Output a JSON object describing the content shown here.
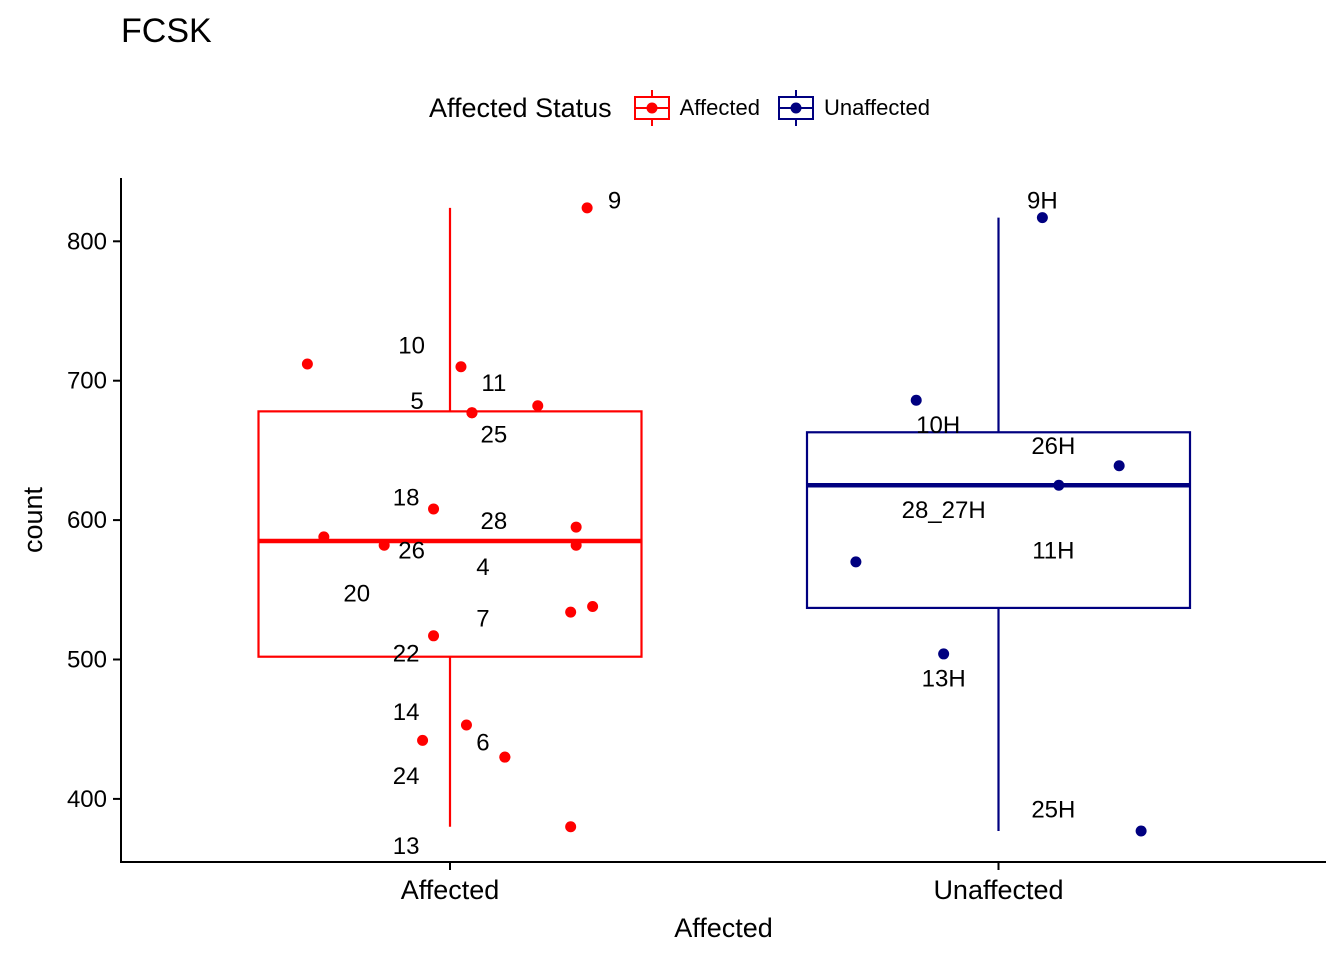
{
  "chart_data": {
    "type": "boxplot",
    "title": "FCSK",
    "xlabel": "Affected",
    "ylabel": "count",
    "ylim": [
      355,
      845
    ],
    "yticks": [
      400,
      500,
      600,
      700,
      800
    ],
    "grid": false,
    "legend": {
      "title": "Affected Status",
      "placement": "top",
      "entries": [
        {
          "label": "Affected",
          "color": "#ff0000"
        },
        {
          "label": "Unaffected",
          "color": "#000080"
        }
      ]
    },
    "categories": [
      "Affected",
      "Unaffected"
    ],
    "boxes": [
      {
        "category": "Affected",
        "color": "#ff0000",
        "whisker_low": 380,
        "q1": 502,
        "median": 585,
        "q3": 678,
        "whisker_high": 824
      },
      {
        "category": "Unaffected",
        "color": "#000080",
        "whisker_low": 377,
        "q1": 537,
        "median": 625,
        "q3": 663,
        "whisker_high": 817
      }
    ],
    "points": [
      {
        "category": "Affected",
        "offset": 0.25,
        "y": 824,
        "label": "9",
        "label_dx": 0.05,
        "label_dy": 6
      },
      {
        "category": "Affected",
        "offset": -0.26,
        "y": 712
      },
      {
        "category": "Affected",
        "offset": 0.02,
        "y": 710,
        "label": "10",
        "label_dx": -0.09,
        "label_dy": 16
      },
      {
        "category": "Affected",
        "offset": 0.16,
        "y": 682,
        "label": "11",
        "label_dx": -0.08,
        "label_dy": 17
      },
      {
        "category": "Affected",
        "offset": 0.04,
        "y": 677,
        "label": "5",
        "label_dx": -0.1,
        "label_dy": 9
      },
      {
        "category": "Affected",
        "offset": 0.04,
        "y": 677,
        "label": "25",
        "label_dx": 0.04,
        "label_dy": -15
      },
      {
        "category": "Affected",
        "offset": -0.03,
        "y": 608,
        "label": "18",
        "label_dx": -0.05,
        "label_dy": 9
      },
      {
        "category": "Affected",
        "offset": 0.23,
        "y": 595,
        "label": "28",
        "label_dx": -0.15,
        "label_dy": 5
      },
      {
        "category": "Affected",
        "offset": -0.23,
        "y": 588
      },
      {
        "category": "Affected",
        "offset": -0.12,
        "y": 582,
        "label": "26",
        "label_dx": 0.05,
        "label_dy": -3
      },
      {
        "category": "Affected",
        "offset": 0.23,
        "y": 582,
        "label": "4",
        "label_dx": -0.17,
        "label_dy": -15
      },
      {
        "category": "Affected",
        "offset": 0.26,
        "y": 538,
        "label": "20",
        "label_dx": -0.43,
        "label_dy": 10
      },
      {
        "category": "Affected",
        "offset": 0.22,
        "y": 534,
        "label": "7",
        "label_dx": -0.16,
        "label_dy": -4
      },
      {
        "category": "Affected",
        "offset": -0.03,
        "y": 517,
        "label": "22",
        "label_dx": -0.05,
        "label_dy": -12
      },
      {
        "category": "Affected",
        "offset": 0.03,
        "y": 453,
        "label": "14",
        "label_dx": -0.11,
        "label_dy": 10
      },
      {
        "category": "Affected",
        "offset": -0.05,
        "y": 442
      },
      {
        "category": "Affected",
        "offset": 0.1,
        "y": 430,
        "label": "6",
        "label_dx": -0.04,
        "label_dy": 11
      },
      {
        "category": "Affected",
        "offset": 0.1,
        "y": 430,
        "label": "24",
        "label_dx": -0.18,
        "label_dy": -13
      },
      {
        "category": "Affected",
        "offset": 0.22,
        "y": 380,
        "label": "13",
        "label_dx": -0.3,
        "label_dy": -13
      },
      {
        "category": "Unaffected",
        "offset": 0.08,
        "y": 817,
        "label": "9H",
        "label_dx": 0.0,
        "label_dy": 13
      },
      {
        "category": "Unaffected",
        "offset": -0.15,
        "y": 686,
        "label": "10H",
        "label_dx": 0.04,
        "label_dy": -17
      },
      {
        "category": "Unaffected",
        "offset": 0.22,
        "y": 639,
        "label": "26H",
        "label_dx": -0.12,
        "label_dy": 15
      },
      {
        "category": "Unaffected",
        "offset": 0.11,
        "y": 625,
        "label": "28_27H",
        "label_dx": -0.21,
        "label_dy": -17
      },
      {
        "category": "Unaffected",
        "offset": -0.26,
        "y": 570,
        "label": "11H",
        "label_dx": 0.36,
        "label_dy": 9
      },
      {
        "category": "Unaffected",
        "offset": -0.1,
        "y": 504,
        "label": "13H",
        "label_dx": 0.0,
        "label_dy": -17
      },
      {
        "category": "Unaffected",
        "offset": 0.26,
        "y": 377,
        "label": "25H",
        "label_dx": -0.16,
        "label_dy": 16
      }
    ]
  }
}
